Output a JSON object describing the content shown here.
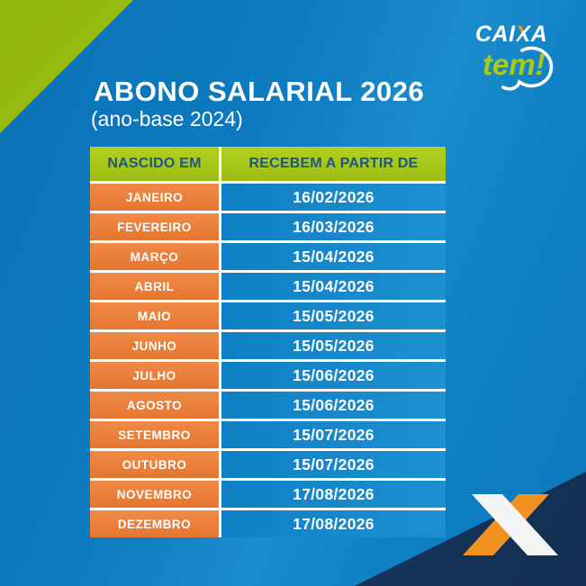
{
  "brand": {
    "caixa_pre": "CAI",
    "caixa_x": "X",
    "caixa_post": "A",
    "tem": "tem!"
  },
  "header": {
    "title": "ABONO SALARIAL 2026",
    "subtitle": "(ano-base 2024)"
  },
  "table": {
    "columns": [
      "NASCIDO EM",
      "RECEBEM A PARTIR DE"
    ],
    "rows": [
      {
        "month": "JANEIRO",
        "date": "16/02/2026"
      },
      {
        "month": "FEVEREIRO",
        "date": "16/03/2026"
      },
      {
        "month": "MARÇO",
        "date": "15/04/2026"
      },
      {
        "month": "ABRIL",
        "date": "15/04/2026"
      },
      {
        "month": "MAIO",
        "date": "15/05/2026"
      },
      {
        "month": "JUNHO",
        "date": "15/05/2026"
      },
      {
        "month": "JULHO",
        "date": "15/06/2026"
      },
      {
        "month": "AGOSTO",
        "date": "15/06/2026"
      },
      {
        "month": "SETEMBRO",
        "date": "15/07/2026"
      },
      {
        "month": "OUTUBRO",
        "date": "15/07/2026"
      },
      {
        "month": "NOVEMBRO",
        "date": "17/08/2026"
      },
      {
        "month": "DEZEMBRO",
        "date": "17/08/2026"
      }
    ]
  },
  "chart_data": {
    "type": "table",
    "title": "ABONO SALARIAL 2026",
    "subtitle": "(ano-base 2024)",
    "columns": [
      "NASCIDO EM",
      "RECEBEM A PARTIR DE"
    ],
    "rows": [
      [
        "JANEIRO",
        "16/02/2026"
      ],
      [
        "FEVEREIRO",
        "16/03/2026"
      ],
      [
        "MARÇO",
        "15/04/2026"
      ],
      [
        "ABRIL",
        "15/04/2026"
      ],
      [
        "MAIO",
        "15/05/2026"
      ],
      [
        "JUNHO",
        "15/05/2026"
      ],
      [
        "JULHO",
        "15/06/2026"
      ],
      [
        "AGOSTO",
        "15/06/2026"
      ],
      [
        "SETEMBRO",
        "15/07/2026"
      ],
      [
        "OUTUBRO",
        "15/07/2026"
      ],
      [
        "NOVEMBRO",
        "17/08/2026"
      ],
      [
        "DEZEMBRO",
        "17/08/2026"
      ]
    ]
  },
  "colors": {
    "background_blue": "#0d7bbf",
    "cell_blue": "#1287c9",
    "orange": "#ea7d3c",
    "green": "#a8c417",
    "header_text_navy": "#1d567e",
    "dark_corner_navy": "#15375f",
    "logo_orange": "#f29222",
    "white": "#ffffff"
  }
}
